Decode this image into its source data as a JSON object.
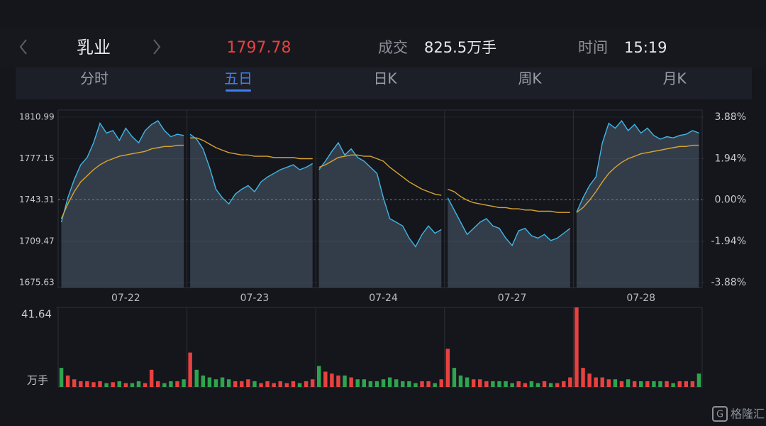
{
  "header": {
    "name": "乳业",
    "price": "1797.78",
    "volume_label": "成交",
    "volume": "825.5万手",
    "time_label": "时间",
    "time": "15:19"
  },
  "tabs": [
    "分时",
    "五日",
    "日K",
    "周K",
    "月K"
  ],
  "active_tab": 1,
  "watermark": "格隆汇",
  "chart_data": [
    {
      "type": "line",
      "x": [
        null,
        null,
        null,
        null,
        null,
        null,
        null,
        null,
        null,
        null,
        "07-22",
        null,
        null,
        null,
        null,
        null,
        null,
        null,
        null,
        null,
        null,
        null,
        null,
        null,
        null,
        null,
        null,
        null,
        null,
        null,
        "07-23",
        null,
        null,
        null,
        null,
        null,
        null,
        null,
        null,
        null,
        null,
        null,
        null,
        null,
        null,
        null,
        null,
        null,
        null,
        null,
        "07-24",
        null,
        null,
        null,
        null,
        null,
        null,
        null,
        null,
        null,
        null,
        null,
        null,
        null,
        null,
        null,
        null,
        null,
        null,
        null,
        "07-27",
        null,
        null,
        null,
        null,
        null,
        null,
        null,
        null,
        null,
        null,
        null,
        null,
        null,
        null,
        null,
        null,
        null,
        null,
        null,
        "07-28",
        null,
        null,
        null,
        null,
        null,
        null,
        null,
        null,
        null
      ],
      "series": [
        {
          "color": "#3fb6e6",
          "area": true,
          "values": [
            1725,
            1745,
            1760,
            1772,
            1778,
            1790,
            1806,
            1798,
            1800,
            1792,
            1802,
            1795,
            1790,
            1800,
            1805,
            1808,
            1800,
            1795,
            1797,
            1796,
            1797,
            1793,
            1785,
            1770,
            1752,
            1745,
            1740,
            1748,
            1752,
            1755,
            1750,
            1758,
            1762,
            1765,
            1768,
            1770,
            1772,
            1768,
            1770,
            1773,
            1768,
            1775,
            1783,
            1790,
            1780,
            1785,
            1778,
            1775,
            1770,
            1765,
            1745,
            1728,
            1725,
            1722,
            1712,
            1705,
            1715,
            1722,
            1716,
            1719,
            1745,
            1735,
            1725,
            1715,
            1720,
            1725,
            1728,
            1722,
            1720,
            1712,
            1706,
            1718,
            1720,
            1714,
            1712,
            1715,
            1710,
            1712,
            1716,
            1720,
            1733,
            1745,
            1755,
            1762,
            1790,
            1806,
            1802,
            1808,
            1800,
            1805,
            1798,
            1802,
            1796,
            1793,
            1795,
            1794,
            1796,
            1797,
            1800,
            1798
          ]
        },
        {
          "color": "#d9a431",
          "area": false,
          "values": [
            1728,
            1740,
            1750,
            1758,
            1763,
            1768,
            1772,
            1775,
            1777,
            1779,
            1780,
            1781,
            1782,
            1783,
            1785,
            1786,
            1787,
            1787,
            1788,
            1788,
            1794,
            1794,
            1792,
            1789,
            1786,
            1784,
            1782,
            1781,
            1780,
            1780,
            1779,
            1779,
            1779,
            1778,
            1778,
            1778,
            1778,
            1777,
            1777,
            1777,
            1770,
            1772,
            1775,
            1778,
            1779,
            1780,
            1780,
            1779,
            1779,
            1777,
            1775,
            1770,
            1766,
            1762,
            1758,
            1755,
            1752,
            1750,
            1748,
            1747,
            1752,
            1750,
            1746,
            1743,
            1741,
            1740,
            1739,
            1738,
            1737,
            1737,
            1736,
            1736,
            1735,
            1735,
            1734,
            1734,
            1734,
            1733,
            1733,
            1733,
            1733,
            1737,
            1743,
            1750,
            1758,
            1765,
            1770,
            1774,
            1777,
            1779,
            1781,
            1782,
            1783,
            1784,
            1785,
            1786,
            1787,
            1787,
            1788,
            1788
          ]
        }
      ],
      "ylim": [
        1675.63,
        1810.99
      ],
      "yticks": [
        1810.99,
        1777.15,
        1743.31,
        1709.47,
        1675.63
      ],
      "baseline_tick": 2,
      "y2lim": [
        -3.88,
        3.88
      ],
      "y2ticks": [
        {
          "value": 3.88,
          "label": "3.88%"
        },
        {
          "value": 1.94,
          "label": "1.94%"
        },
        {
          "value": 0,
          "label": "0.00%"
        },
        {
          "value": -1.94,
          "label": "-1.94%"
        },
        {
          "value": -3.88,
          "label": "-3.88%"
        }
      ],
      "grid": true
    },
    {
      "type": "bar",
      "values": [
        10,
        6,
        4,
        3,
        3,
        2.5,
        3,
        2,
        2.5,
        3,
        2,
        2,
        3,
        2,
        9,
        3,
        2,
        3,
        3,
        4,
        18,
        9,
        6,
        5,
        4,
        5,
        4,
        3,
        3,
        4,
        3,
        2,
        3,
        2,
        3,
        2,
        3,
        2,
        3,
        4,
        11,
        8,
        7,
        6,
        6,
        5,
        4,
        4,
        3,
        3,
        4,
        5,
        4,
        3,
        3,
        2,
        3,
        3,
        2,
        4,
        20,
        10,
        6,
        5,
        4,
        4,
        3,
        3,
        3,
        3,
        2,
        3,
        2,
        3,
        2,
        3,
        2,
        2,
        3,
        5,
        41.64,
        10,
        7,
        5,
        5,
        4,
        4,
        3,
        4,
        3,
        3,
        3,
        3,
        3,
        3,
        2,
        3,
        3,
        3,
        7
      ],
      "ylim": [
        0,
        41.64
      ],
      "yticks": [
        41.64
      ],
      "y_label": "万手",
      "up_color": "#e8413f",
      "down_color": "#2ea44f"
    }
  ]
}
